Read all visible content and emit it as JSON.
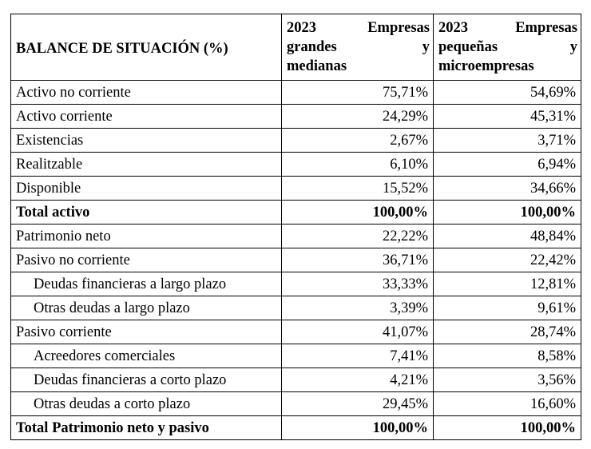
{
  "header": {
    "title": "BALANCE DE SITUACIÓN (%)",
    "col1": {
      "line1_left": "2023",
      "line1_right": "Empresas",
      "line2_left": "grandes",
      "line2_right": "y",
      "line3": "medianas"
    },
    "col2": {
      "line1_left": "2023",
      "line1_right": "Empresas",
      "line2_left": "pequeñas",
      "line2_right": "y",
      "line3": "microempresas"
    }
  },
  "rows": [
    {
      "label": "Activo no corriente",
      "v1": "75,71%",
      "v2": "54,69%"
    },
    {
      "label": "Activo corriente",
      "v1": "24,29%",
      "v2": "45,31%"
    },
    {
      "label": "Existencias",
      "v1": "2,67%",
      "v2": "3,71%"
    },
    {
      "label": "Realitzable",
      "v1": "6,10%",
      "v2": "6,94%"
    },
    {
      "label": "Disponible",
      "v1": "15,52%",
      "v2": "34,66%"
    },
    {
      "label": "Total activo",
      "v1": "100,00%",
      "v2": "100,00%"
    },
    {
      "label": "Patrimonio neto",
      "v1": "22,22%",
      "v2": "48,84%"
    },
    {
      "label": "Pasivo no corriente",
      "v1": "36,71%",
      "v2": "22,42%"
    },
    {
      "label": "Deudas financieras a largo plazo",
      "v1": "33,33%",
      "v2": "12,81%"
    },
    {
      "label": "Otras deudas a largo plazo",
      "v1": "3,39%",
      "v2": "9,61%"
    },
    {
      "label": "Pasivo corriente",
      "v1": "41,07%",
      "v2": "28,74%"
    },
    {
      "label": "Acreedores comerciales",
      "v1": "7,41%",
      "v2": "8,58%"
    },
    {
      "label": "Deudas financieras a corto plazo",
      "v1": "4,21%",
      "v2": "3,56%"
    },
    {
      "label": "Otras deudas a corto plazo",
      "v1": "29,45%",
      "v2": "16,60%"
    },
    {
      "label": "Total Patrimonio neto y pasivo",
      "v1": "100,00%",
      "v2": "100,00%"
    }
  ]
}
